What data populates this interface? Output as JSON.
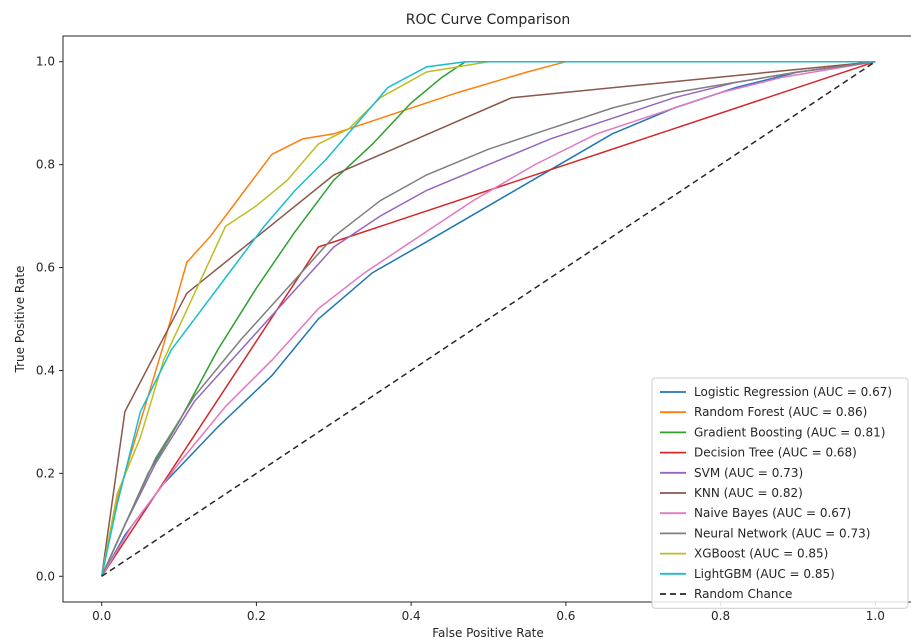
{
  "chart_data": {
    "type": "line",
    "title": "ROC Curve Comparison",
    "xlabel": "False Positive Rate",
    "ylabel": "True Positive Rate",
    "xlim": [
      -0.05,
      1.05
    ],
    "ylim": [
      -0.05,
      1.05
    ],
    "xticks": [
      "0.0",
      "0.2",
      "0.4",
      "0.6",
      "0.8",
      "1.0"
    ],
    "yticks": [
      "0.0",
      "0.2",
      "0.4",
      "0.6",
      "0.8",
      "1.0"
    ],
    "grid": false,
    "legend_position": "lower-right",
    "series": [
      {
        "name": "Logistic Regression (AUC = 0.67)",
        "color": "#1f77b4",
        "dash": "",
        "x": [
          0,
          0.03,
          0.08,
          0.15,
          0.22,
          0.28,
          0.35,
          0.42,
          0.5,
          0.58,
          0.66,
          0.74,
          0.82,
          0.9,
          1.0
        ],
        "y": [
          0,
          0.08,
          0.18,
          0.29,
          0.39,
          0.5,
          0.59,
          0.65,
          0.72,
          0.79,
          0.86,
          0.91,
          0.95,
          0.98,
          1.0
        ]
      },
      {
        "name": "Random Forest (AUC = 0.86)",
        "color": "#ff7f0e",
        "dash": "",
        "x": [
          0,
          0.02,
          0.05,
          0.08,
          0.11,
          0.14,
          0.18,
          0.22,
          0.26,
          0.3,
          0.38,
          0.46,
          0.55,
          0.6,
          0.7,
          1.0
        ],
        "y": [
          0,
          0.15,
          0.3,
          0.45,
          0.61,
          0.66,
          0.74,
          0.82,
          0.85,
          0.86,
          0.9,
          0.94,
          0.98,
          1.0,
          1.0,
          1.0
        ]
      },
      {
        "name": "Gradient Boosting (AUC = 0.81)",
        "color": "#2ca02c",
        "dash": "",
        "x": [
          0,
          0.03,
          0.06,
          0.1,
          0.15,
          0.2,
          0.25,
          0.3,
          0.35,
          0.4,
          0.44,
          0.47,
          0.6,
          1.0
        ],
        "y": [
          0,
          0.1,
          0.2,
          0.3,
          0.44,
          0.56,
          0.67,
          0.77,
          0.84,
          0.92,
          0.97,
          1.0,
          1.0,
          1.0
        ]
      },
      {
        "name": "Decision Tree (AUC = 0.68)",
        "color": "#d62728",
        "dash": "",
        "x": [
          0,
          0.28,
          1.0
        ],
        "y": [
          0,
          0.64,
          1.0
        ]
      },
      {
        "name": "SVM (AUC = 0.73)",
        "color": "#9467bd",
        "dash": "",
        "x": [
          0,
          0.03,
          0.07,
          0.12,
          0.18,
          0.24,
          0.3,
          0.36,
          0.42,
          0.5,
          0.58,
          0.66,
          0.74,
          0.82,
          0.9,
          1.0
        ],
        "y": [
          0,
          0.1,
          0.22,
          0.34,
          0.44,
          0.54,
          0.64,
          0.7,
          0.75,
          0.8,
          0.85,
          0.89,
          0.93,
          0.96,
          0.98,
          1.0
        ]
      },
      {
        "name": "KNN (AUC = 0.82)",
        "color": "#8c564b",
        "dash": "",
        "x": [
          0,
          0.03,
          0.11,
          0.3,
          0.53,
          1.0
        ],
        "y": [
          0,
          0.32,
          0.55,
          0.78,
          0.93,
          1.0
        ]
      },
      {
        "name": "Naive Bayes (AUC = 0.67)",
        "color": "#e377c2",
        "dash": "",
        "x": [
          0,
          0.04,
          0.1,
          0.16,
          0.22,
          0.28,
          0.34,
          0.4,
          0.48,
          0.56,
          0.64,
          0.72,
          0.8,
          0.88,
          1.0
        ],
        "y": [
          0,
          0.1,
          0.22,
          0.33,
          0.42,
          0.52,
          0.59,
          0.65,
          0.73,
          0.8,
          0.86,
          0.9,
          0.94,
          0.97,
          1.0
        ]
      },
      {
        "name": "Neural Network (AUC = 0.73)",
        "color": "#7f7f7f",
        "dash": "",
        "x": [
          0,
          0.03,
          0.07,
          0.12,
          0.18,
          0.24,
          0.3,
          0.36,
          0.42,
          0.5,
          0.58,
          0.66,
          0.74,
          0.82,
          0.9,
          1.0
        ],
        "y": [
          0,
          0.1,
          0.23,
          0.35,
          0.46,
          0.56,
          0.66,
          0.73,
          0.78,
          0.83,
          0.87,
          0.91,
          0.94,
          0.96,
          0.98,
          1.0
        ]
      },
      {
        "name": "XGBoost (AUC = 0.85)",
        "color": "#bcbd22",
        "dash": "",
        "x": [
          0,
          0.02,
          0.05,
          0.08,
          0.12,
          0.16,
          0.2,
          0.24,
          0.28,
          0.32,
          0.36,
          0.42,
          0.5,
          0.6,
          1.0
        ],
        "y": [
          0,
          0.16,
          0.27,
          0.42,
          0.55,
          0.68,
          0.72,
          0.77,
          0.84,
          0.87,
          0.93,
          0.98,
          1.0,
          1.0,
          1.0
        ]
      },
      {
        "name": "LightGBM (AUC = 0.85)",
        "color": "#17becf",
        "dash": "",
        "x": [
          0,
          0.02,
          0.05,
          0.09,
          0.13,
          0.17,
          0.21,
          0.25,
          0.29,
          0.33,
          0.37,
          0.42,
          0.47,
          0.6,
          1.0
        ],
        "y": [
          0,
          0.14,
          0.32,
          0.44,
          0.52,
          0.6,
          0.68,
          0.75,
          0.81,
          0.88,
          0.95,
          0.99,
          1.0,
          1.0,
          1.0
        ]
      },
      {
        "name": "Random Chance",
        "color": "#262626",
        "dash": "6,4",
        "x": [
          0,
          1.0
        ],
        "y": [
          0,
          1.0
        ]
      }
    ]
  }
}
